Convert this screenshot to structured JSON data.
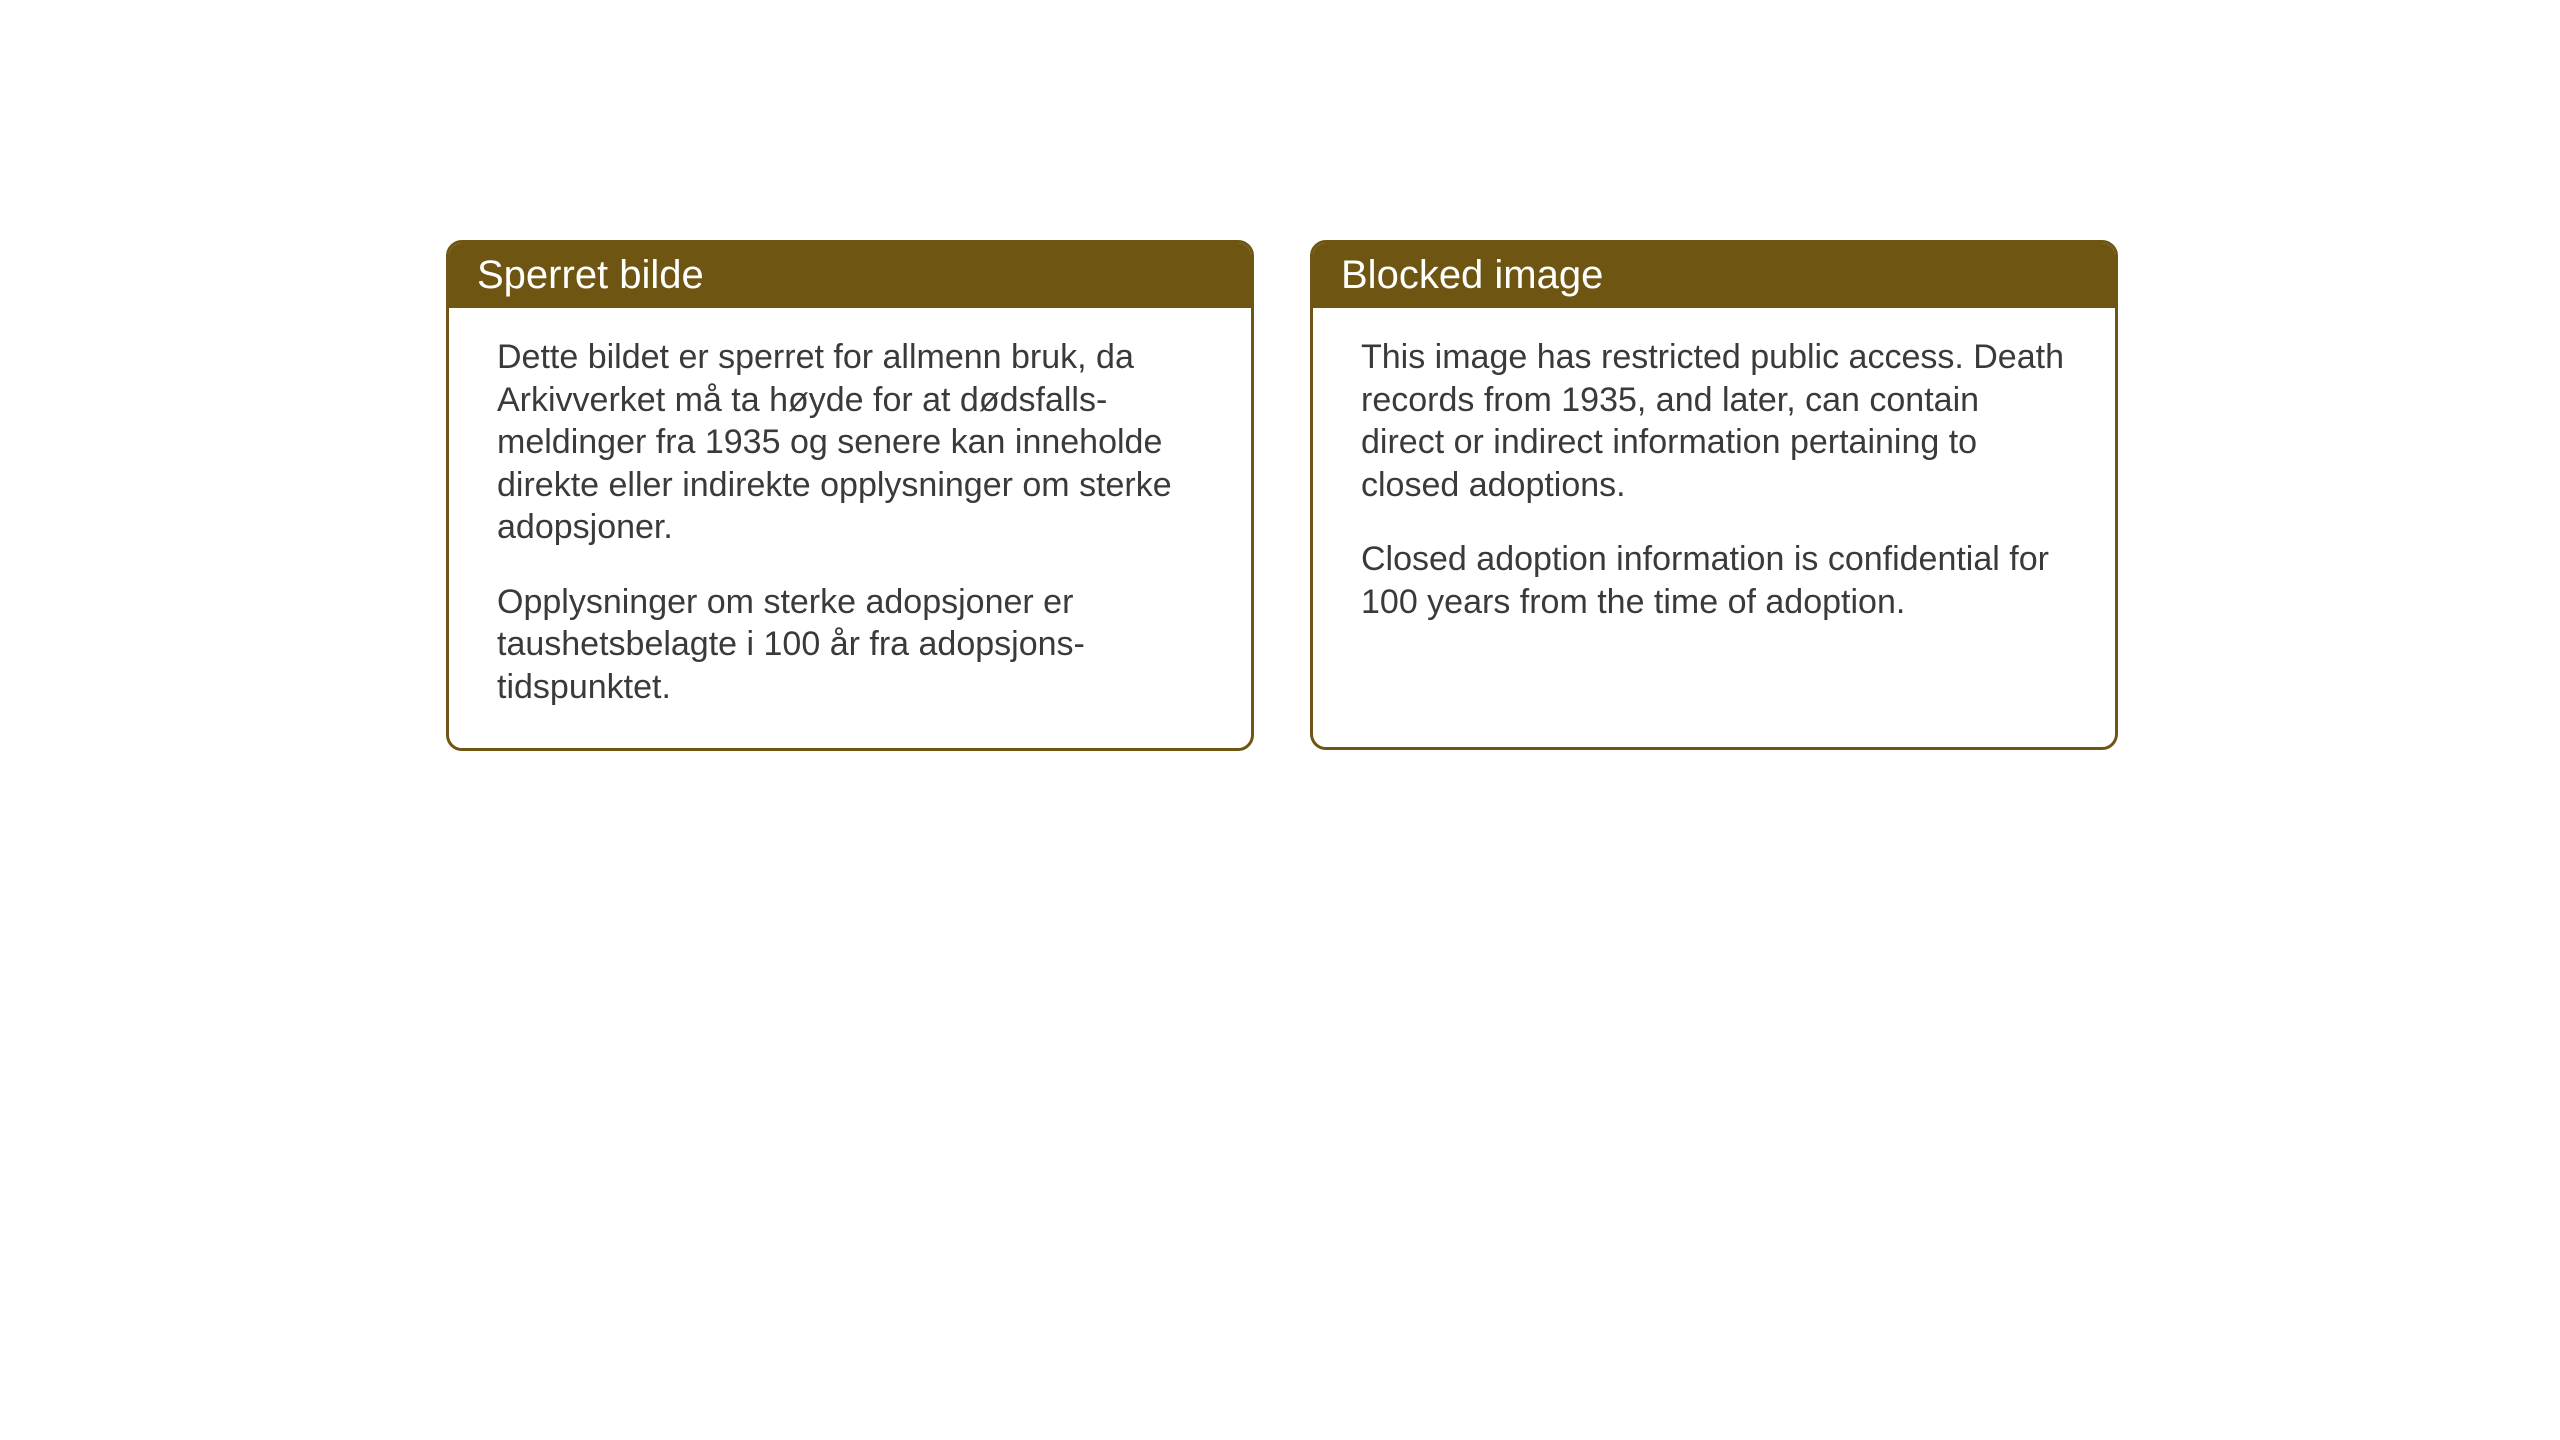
{
  "layout": {
    "background_color": "#ffffff",
    "card_border_color": "#6f5512",
    "header_background_color": "#6f5512",
    "header_text_color": "#ffffff",
    "body_text_color": "#3a3a3a",
    "card_border_radius": 16,
    "card_border_width": 3,
    "header_font_size": 40,
    "body_font_size": 34
  },
  "left_card": {
    "title": "Sperret bilde",
    "paragraph1": "Dette bildet er sperret for allmenn bruk, da Arkivverket må ta høyde for at dødsfalls-meldinger fra 1935 og senere kan inneholde direkte eller indirekte opplysninger om sterke adopsjoner.",
    "paragraph2": "Opplysninger om sterke adopsjoner er taushetsbelagte i 100 år fra adopsjons-tidspunktet."
  },
  "right_card": {
    "title": "Blocked image",
    "paragraph1": "This image has restricted public access. Death records from 1935, and later, can contain direct or indirect information pertaining to closed adoptions.",
    "paragraph2": "Closed adoption information is confidential for 100 years from the time of adoption."
  }
}
